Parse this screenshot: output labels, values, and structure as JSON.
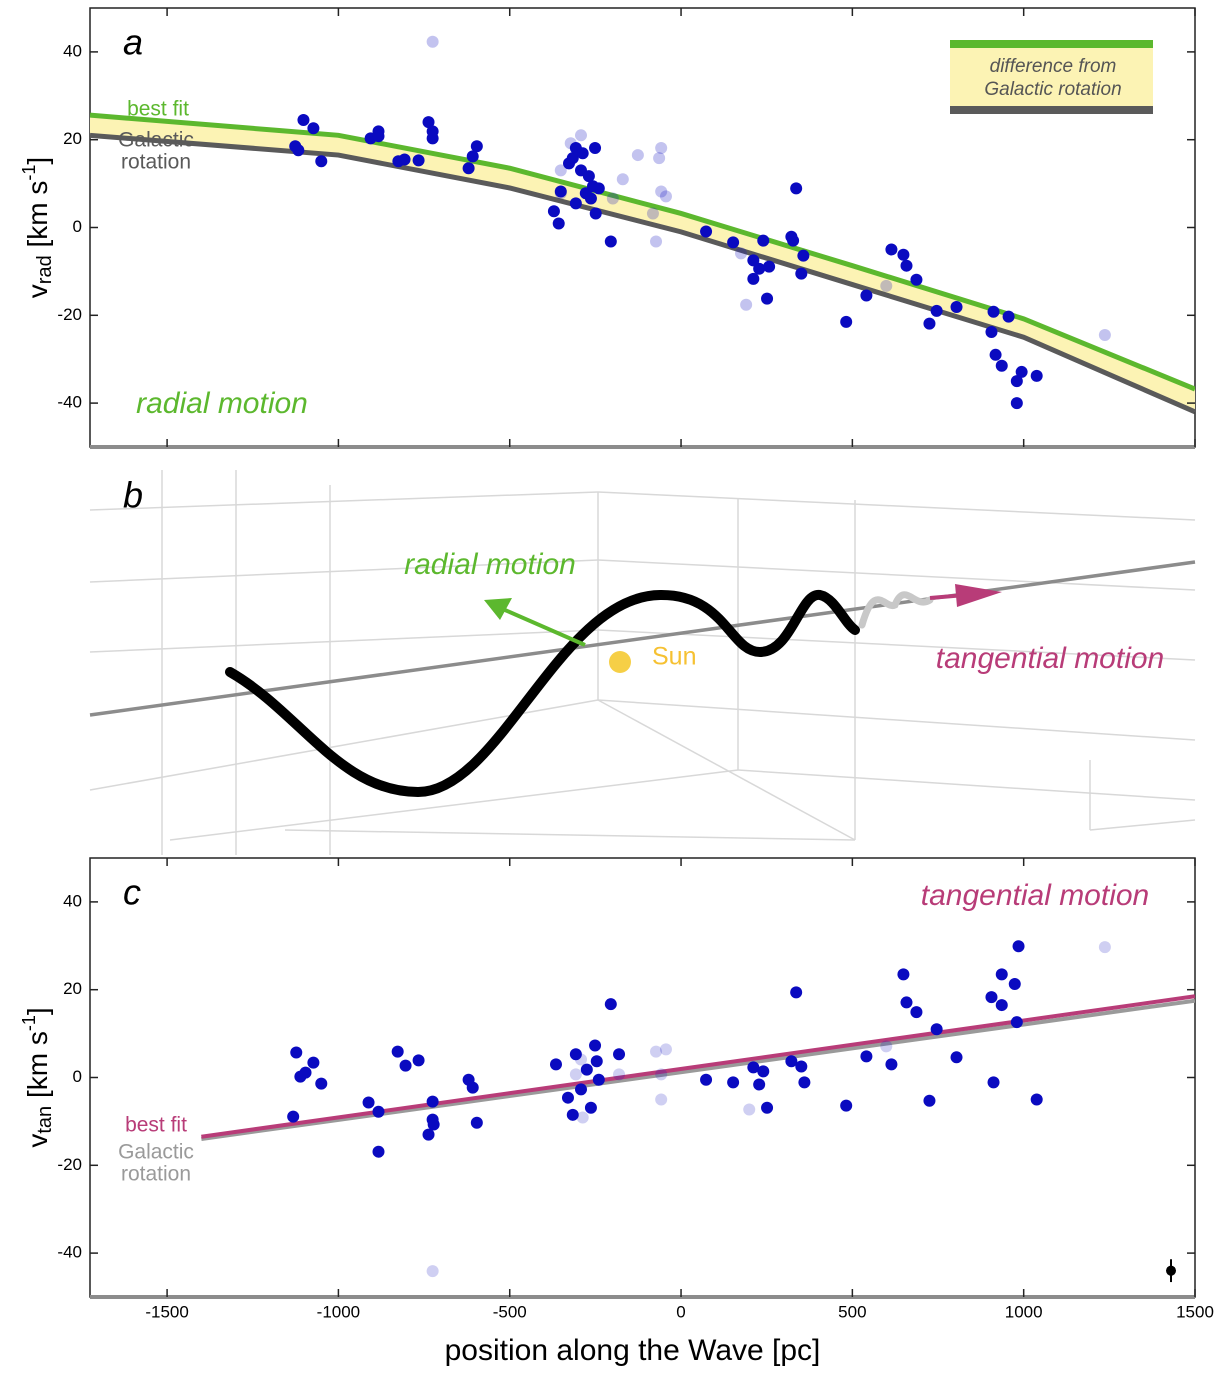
{
  "chart_data": [
    {
      "type": "scatter",
      "panel_label": "a",
      "y_label": {
        "base": "v",
        "sub": "rad",
        "unit": " [km s",
        "sup": "-1",
        "close": "]"
      },
      "xlim": [
        -1725,
        1500
      ],
      "xticks": [
        -1500,
        -1000,
        -500,
        0,
        500,
        1000,
        1500
      ],
      "xtick_labels": false,
      "ylim": [
        -50,
        50
      ],
      "yticks": [
        -40,
        -20,
        0,
        20,
        40
      ],
      "annotation": {
        "text": "radial motion",
        "color": "#5cb82e"
      },
      "fill_between": {
        "color": "#fcf3b4"
      },
      "legend_box": {
        "text": [
          "difference from",
          "Galactic rotation"
        ]
      },
      "lines": [
        {
          "name": [
            "best fit"
          ],
          "color": "#5cb82e",
          "x": [
            -1725,
            -1000,
            -500,
            0,
            500,
            1000,
            1500
          ],
          "values": [
            25.6,
            21,
            13.5,
            3.2,
            -8.7,
            -20.8,
            -36.8
          ]
        },
        {
          "name": [
            "Galactic",
            "rotation"
          ],
          "color": "#5a5a5a",
          "x": [
            -1725,
            -1000,
            -500,
            0,
            500,
            1000,
            1500
          ],
          "values": [
            21,
            16.5,
            9,
            -1,
            -13,
            -25,
            -42
          ]
        }
      ],
      "series": [
        {
          "color": "#0a0ac0",
          "alpha": 1,
          "x": [
            -1102,
            -1073,
            -1126,
            -1117,
            -1050,
            -906,
            -883,
            -883,
            -825,
            -807,
            -766,
            -737,
            -725,
            -725,
            -620,
            -608,
            -596,
            -371,
            -357,
            -351,
            -327,
            -316,
            -307,
            -292,
            -287,
            -278,
            -269,
            -257,
            -251,
            -249,
            -240,
            -205,
            -307,
            -263,
            73,
            152,
            211,
            211,
            228,
            240,
            251,
            257,
            322,
            327,
            336,
            357,
            351,
            482,
            541,
            614,
            649,
            658,
            687,
            725,
            746,
            804,
            906,
            912,
            918,
            936,
            956,
            980,
            980,
            994,
            1038
          ],
          "values": [
            24.5,
            22.6,
            18.5,
            17.6,
            15.1,
            20.3,
            21.9,
            20.8,
            15.1,
            15.5,
            15.3,
            24,
            20.3,
            21.9,
            13.5,
            16.2,
            18.5,
            3.7,
            0.9,
            8.2,
            14.6,
            15.8,
            18.1,
            13,
            16.9,
            7.8,
            11.7,
            9.4,
            18.1,
            3.2,
            8.9,
            -3.2,
            5.5,
            6.6,
            -0.9,
            -3.4,
            -7.5,
            -11.7,
            -9.4,
            -3,
            -16.2,
            -8.9,
            -2.1,
            -3,
            8.9,
            -6.4,
            -10.5,
            -21.5,
            -15.5,
            -5,
            -6.2,
            -8.7,
            -11.9,
            -21.9,
            -19,
            -18.1,
            -23.8,
            -19.2,
            -29,
            -31.5,
            -20.3,
            -35,
            -40,
            -32.9,
            -33.8
          ]
        },
        {
          "color": "#1010c0",
          "alpha": 0.25,
          "x": [
            -725,
            -351,
            -322,
            -292,
            -351,
            -199,
            -170,
            -126,
            -82,
            -73,
            -64,
            -58,
            -58,
            -44,
            175,
            190,
            599,
            1237
          ],
          "values": [
            42.3,
            13,
            19.2,
            21,
            7.8,
            6.6,
            11,
            16.5,
            3.2,
            -3.2,
            15.8,
            18.1,
            8.2,
            7.1,
            -5.9,
            -17.6,
            -13.3,
            -24.5
          ]
        }
      ]
    },
    {
      "type": "scatter",
      "panel_label": "c",
      "y_label": {
        "base": "v",
        "sub": "tan",
        "unit": " [km s",
        "sup": "-1",
        "close": "]"
      },
      "x_label": "position along the Wave [pc]",
      "xlim": [
        -1725,
        1500
      ],
      "xticks": [
        -1500,
        -1000,
        -500,
        0,
        500,
        1000,
        1500
      ],
      "xtick_labels": true,
      "ylim": [
        -50,
        50
      ],
      "yticks": [
        -40,
        -20,
        0,
        20,
        40
      ],
      "annotation": {
        "text": "tangential motion",
        "color": "#b83c78"
      },
      "lines": [
        {
          "name": [
            "Galactic",
            "rotation"
          ],
          "color": "#9a9a9a",
          "x": [
            -1400,
            1500
          ],
          "values": [
            -14,
            17.5
          ]
        },
        {
          "name": [
            "best fit"
          ],
          "color": "#b83c78",
          "x": [
            -1400,
            1500
          ],
          "values": [
            -13.5,
            18.5
          ]
        }
      ],
      "series": [
        {
          "color": "#0a0ac0",
          "alpha": 1,
          "x": [
            -1132,
            -1123,
            -1111,
            -1096,
            -1073,
            -1050,
            -912,
            -883,
            -883,
            -827,
            -804,
            -766,
            -737,
            -725,
            -725,
            -722,
            -620,
            -608,
            -596,
            -365,
            -330,
            -316,
            -307,
            -292,
            -275,
            -263,
            -251,
            -246,
            -240,
            -205,
            -181,
            73,
            152,
            211,
            228,
            240,
            251,
            322,
            336,
            351,
            360,
            482,
            541,
            614,
            649,
            658,
            687,
            725,
            746,
            804,
            906,
            912,
            936,
            936,
            980,
            974,
            985,
            1038
          ],
          "values": [
            -8.9,
            5.7,
            0.2,
            1.1,
            3.4,
            -1.4,
            -5.7,
            -7.8,
            -16.9,
            5.9,
            2.7,
            3.9,
            -13,
            -5.5,
            -9.6,
            -10.7,
            -0.5,
            -2.3,
            -10.3,
            3,
            -4.6,
            -8.5,
            5.3,
            -2.7,
            1.8,
            -6.9,
            7.3,
            3.7,
            -0.5,
            16.7,
            5.3,
            -0.5,
            -1.1,
            2.3,
            -1.6,
            1.4,
            -6.9,
            3.7,
            19.4,
            2.5,
            -1.1,
            -6.4,
            4.8,
            3,
            23.5,
            17.1,
            14.9,
            -5.3,
            11,
            4.6,
            18.3,
            -1.1,
            23.5,
            16.5,
            12.6,
            21.3,
            29.9,
            -5
          ]
        },
        {
          "color": "#1010c0",
          "alpha": 0.2,
          "x": [
            -725,
            -307,
            -287,
            -292,
            -181,
            -73,
            -58,
            -44,
            -58,
            199,
            599,
            1237
          ],
          "values": [
            -44.1,
            0.7,
            -9.1,
            4.1,
            0.7,
            5.9,
            -5,
            6.4,
            0.7,
            -7.3,
            7.1,
            29.7
          ]
        }
      ],
      "error_bar": {
        "x": 1430,
        "y": -44,
        "err": 2.6
      }
    }
  ],
  "panel_b": {
    "label": "b",
    "radial": "radial motion",
    "sun": "Sun",
    "tangential": "tangential motion"
  }
}
